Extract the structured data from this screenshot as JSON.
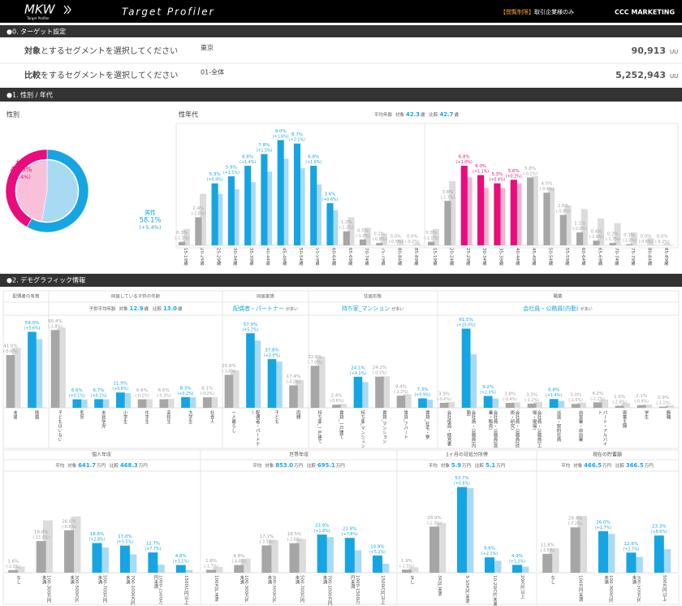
{
  "header": {
    "logo": "MKW",
    "logo_sub": "Target Profiler",
    "app_title": "Target Profiler",
    "restriction_tag": "【閲覧制限】",
    "restriction_text": "取引企業様のみ",
    "brand": "CCC MARKETING"
  },
  "sections": [
    "●0. ターゲット設定",
    "●1. 性別 / 年代",
    "●2. デモグラフィック情報"
  ],
  "target_setting": {
    "rows": [
      {
        "label_key": "対象",
        "label_text": "とするセグメントを選択してください",
        "segment": "東京",
        "count": "90,913",
        "unit": "UU"
      },
      {
        "label_key": "比較",
        "label_text": "をするセグメントを選択してください",
        "segment": "01-全体",
        "count": "5,252,943",
        "unit": "UU"
      }
    ]
  },
  "colors": {
    "accent": "#16a5e3",
    "female_label": "#ea0b7c",
    "male_label": "#16a5e3"
  },
  "chart_data": [
    {
      "type": "pie",
      "title": "性別",
      "categories": [
        "女性",
        "男性"
      ],
      "series": [
        {
          "colors": [
            "#ea0b7c",
            "#16a5e3"
          ],
          "values": [
            41.9,
            58.1
          ],
          "value_labels": [
            "41.9%",
            "58.1%"
          ],
          "diff_labels": [
            "(-5.4%)",
            "(+5.4%)"
          ]
        },
        {
          "colors": [
            "#f9c0da",
            "#a9daf3"
          ],
          "values": [
            47.3,
            52.7
          ]
        }
      ]
    },
    {
      "type": "bar",
      "title": "性年代",
      "stats": {
        "label": "平均年齢",
        "target_label": "対象",
        "target_value": 42.3,
        "compare_label": "比較",
        "compare_value": 42.7,
        "unit": "歳"
      },
      "categories": [
        "15-19歳",
        "20-24歳",
        "25-29歳",
        "30-34歳",
        "35-39歳",
        "40-44歳",
        "45-49歳",
        "50-54歳",
        "55-59歳",
        "60-64歳",
        "65-69歳",
        "70-74歳",
        "75-79歳",
        "80-84歳",
        "85-89歳"
      ],
      "ylim": [
        0,
        10
      ],
      "series": [
        {
          "color": "#16a5e3",
          "muted_color": "#a6a6a6",
          "values": [
            0.3,
            2.4,
            5.3,
            5.9,
            6.8,
            7.8,
            9.0,
            8.7,
            6.8,
            3.6,
            1.2,
            0.5,
            0.2,
            0.0,
            0.0
          ],
          "value_labels": [
            "0.3%",
            "2.4%",
            "5.3%",
            "5.9%",
            "6.8%",
            "7.8%",
            "9.0%",
            "8.7%",
            "6.8%",
            "3.6%",
            "1.2%",
            "0.5%",
            "0.2%",
            "0.0%",
            "0.0%"
          ],
          "diff_labels": [
            "(-1.1%)",
            "(-2.0%)",
            "(+0.9%)",
            "(+1.1%)",
            "(+1.4%)",
            "(+1.5%)",
            "(+1.6%)",
            "(+2.1%)",
            "(+1.6%)",
            "(+0.6%)",
            "(-1.2%)",
            "(-1.0%)",
            "(-0.8%)",
            "(-0.5%)",
            "(-0.2%)"
          ]
        },
        {
          "color": "#a9daf3",
          "muted_color": "#dcdcdc",
          "values": [
            1.4,
            4.4,
            4.4,
            4.8,
            5.4,
            6.3,
            7.4,
            6.6,
            5.2,
            3.0,
            2.4,
            1.5,
            1.0,
            0.5,
            0.2
          ]
        }
      ]
    },
    {
      "type": "bar",
      "categories": [
        "15-19歳",
        "20-24歳",
        "25-29歳",
        "30-34歳",
        "35-39歳",
        "40-44歳",
        "45-49歳",
        "50-54歳",
        "55-59歳",
        "60-64歳",
        "65-69歳",
        "70-74歳",
        "75-79歳",
        "80-84歳",
        "85-89歳"
      ],
      "ylim": [
        0,
        10
      ],
      "series": [
        {
          "color": "#ea0b7c",
          "muted_color": "#a6a6a6",
          "values": [
            0.3,
            3.8,
            6.8,
            6.0,
            5.3,
            5.6,
            5.8,
            4.5,
            2.6,
            1.1,
            0.4,
            0.2,
            0.1,
            0.0,
            0.0
          ],
          "value_labels": [
            "0.3%",
            "3.8%",
            "6.8%",
            "6.0%",
            "5.3%",
            "5.6%",
            "5.8%",
            "4.5%",
            "2.6%",
            "1.1%",
            "0.4%",
            "0.2%",
            "0.1%",
            "0.0%",
            "0.0%"
          ],
          "diff_labels": [
            "(-1.1%)",
            "(-1.7%)",
            "(+1.0%)",
            "(+1.1%)",
            "(+0.4%)",
            "(+0.3%)",
            "(-0.1%)",
            "(-0.4%)",
            "(-0.8%)",
            "(-2.0%)",
            "(-1.9%)",
            "(-1.7%)",
            "(-1.0%)",
            "(-0.6%)",
            "(-0.2%)"
          ]
        },
        {
          "color": "#f6b1d0",
          "muted_color": "#dcdcdc",
          "values": [
            1.4,
            5.5,
            5.8,
            4.9,
            4.9,
            5.3,
            5.9,
            4.9,
            3.4,
            3.1,
            2.3,
            1.9,
            1.1,
            0.6,
            0.2
          ]
        }
      ]
    },
    {
      "type": "bar",
      "title": "配偶者の有無",
      "categories": [
        "未婚",
        "既婚"
      ],
      "ylim": [
        0,
        65
      ],
      "series": [
        {
          "color": "#16a5e3",
          "muted_color": "#a6a6a6",
          "values": [
            41.0,
            59.0
          ],
          "value_labels": [
            "41.0%",
            "59.0%"
          ],
          "diff_labels": [
            "(-5.6%)",
            "(+5.6%)"
          ]
        },
        {
          "color": "#a9daf3",
          "muted_color": "#dcdcdc",
          "values": [
            46.6,
            53.4
          ]
        }
      ]
    },
    {
      "type": "bar",
      "title": "同居している子供の年齢",
      "stats": {
        "label": "子供平均年齢",
        "target_label": "対象",
        "target_value": 12.9,
        "compare_label": "比較",
        "compare_value": {
          "value": 13,
          "label": "13.0"
        },
        "unit": "歳"
      },
      "categories": [
        "子どもはいない",
        "乳児",
        "未就学児",
        "小学生",
        "中学生",
        "高校生",
        "大学生",
        "社会人"
      ],
      "ylim": [
        0,
        65
      ],
      "series": [
        {
          "color": "#16a5e3",
          "muted_color": "#a6a6a6",
          "values": [
            60.4,
            6.6,
            6.7,
            11.9,
            6.6,
            6.6,
            8.3,
            8.1
          ],
          "value_labels": [
            "60.4%",
            "6.6%",
            "6.7%",
            "11.9%",
            "6.6%",
            "6.6%",
            "8.3%",
            "8.1%"
          ],
          "diff_labels": [
            "(-1.8%)",
            "(+0.1%)",
            "(+0.1%)",
            "(+0.6%)",
            "(-0.1%)",
            "(-0.3%)",
            "(+0.2%)",
            "(-0.2%)"
          ]
        },
        {
          "color": "#a9daf3",
          "muted_color": "#dcdcdc",
          "values": [
            62.2,
            6.5,
            6.6,
            11.3,
            6.7,
            6.9,
            8.1,
            8.3
          ]
        }
      ]
    },
    {
      "type": "bar",
      "title": "同居家族",
      "highlight": {
        "text": "配偶者・パートナー",
        "suffix": "が多い"
      },
      "categories": [
        "一人暮らし",
        "配偶者・パートナー",
        "子ども",
        "両親"
      ],
      "ylim": [
        0,
        65
      ],
      "series": [
        {
          "color": "#16a5e3",
          "muted_color": "#a6a6a6",
          "values": [
            25.6,
            57.9,
            37.8,
            17.4
          ],
          "value_labels": [
            "25.6%",
            "57.9%",
            "37.8%",
            "17.4%"
          ],
          "diff_labels": [
            "(-3.6%)",
            "(+5.7%)",
            "(+2.0%)",
            "(-4.2%)"
          ]
        },
        {
          "color": "#a9daf3",
          "muted_color": "#dcdcdc",
          "values": [
            29.2,
            52.2,
            35.8,
            21.6
          ]
        }
      ]
    },
    {
      "type": "bar",
      "title": "住居形態",
      "highlight": {
        "text": "持ち家_マンション",
        "suffix": "が多い"
      },
      "categories": [
        "持ち家_一戸建て",
        "賃貸_一戸建て",
        "持ち家_マンション",
        "賃貸_マンション",
        "賃貸_アパート",
        "賃貸_社宅・寮"
      ],
      "ylim": [
        0,
        65
      ],
      "series": [
        {
          "color": "#16a5e3",
          "muted_color": "#a6a6a6",
          "values": [
            32.6,
            2.4,
            24.1,
            24.2,
            9.4,
            7.3
          ],
          "value_labels": [
            "32.6%",
            "2.4%",
            "24.1%",
            "24.2%",
            "9.4%",
            "7.3%"
          ],
          "diff_labels": [
            "(-7.0%)",
            "(-0.6%)",
            "(+4.1%)",
            "(-0.2%)",
            "(-1.2%)",
            "(+0.9%)"
          ]
        },
        {
          "color": "#a9daf3",
          "muted_color": "#dcdcdc",
          "values": [
            39.6,
            3.0,
            20.0,
            24.4,
            10.6,
            6.4
          ]
        }
      ]
    },
    {
      "type": "bar",
      "title": "職業",
      "highlight": {
        "text": "会社員・公務員(内勤)",
        "suffix": "が多い"
      },
      "categories": [
        "会社役員・経営者",
        "会社員・公務員(内勤)",
        "会社員・公務員(営業・販売)",
        "会社員・公務員(技術・研究)",
        "会社員・公務員(工場・現場)",
        "派遣・契約社員",
        "自営業・自由業",
        "パート・アルバイト",
        "専業主婦",
        "学生",
        "無職"
      ],
      "ylim": [
        0,
        65
      ],
      "series": [
        {
          "color": "#16a5e3",
          "muted_color": "#a6a6a6",
          "values": [
            3.9,
            61.5,
            9.2,
            3.8,
            3.3,
            6.8,
            3.0,
            4.2,
            1.6,
            2.1,
            0.9
          ],
          "value_labels": [
            "3.9%",
            "61.5%",
            "9.2%",
            "3.8%",
            "3.3%",
            "6.8%",
            "3.0%",
            "4.2%",
            "1.6%",
            "2.1%",
            "0.9%"
          ],
          "diff_labels": [
            "(-0.6%)",
            "(+20.0%)",
            "(+2.0%)",
            "(-0.4%)",
            "(-1.2%)",
            "(+1.4%)",
            "(-1.0%)",
            "(-2.2%)",
            "(-2.0%)",
            "(-0.4%)",
            "(-1.1%)"
          ]
        },
        {
          "color": "#a9daf3",
          "muted_color": "#dcdcdc",
          "values": [
            4.5,
            41.5,
            7.2,
            4.2,
            4.5,
            5.4,
            4.0,
            6.4,
            3.6,
            2.5,
            2.0
          ]
        }
      ]
    },
    {
      "type": "bar",
      "title": "個人年収",
      "stats": {
        "label": "平均",
        "target_label": "対象",
        "target_value": 641.7,
        "compare_label": "比較",
        "compare_value": 468.3,
        "unit": "万円"
      },
      "categories": [
        "なし",
        "100-300万円未満",
        "300-500万円未満",
        "500-700万円未満",
        "700-1000万円未満",
        "1000-1500万円未満",
        "1500万円以上"
      ],
      "ylim": [
        0,
        55
      ],
      "series": [
        {
          "color": "#16a5e3",
          "muted_color": "#a6a6a6",
          "values": [
            1.6,
            19.8,
            26.6,
            18.6,
            17.0,
            12.7,
            4.8
          ],
          "value_labels": [
            "1.6%",
            "19.8%",
            "26.6%",
            "18.6%",
            "17.0%",
            "12.7%",
            "4.8%"
          ],
          "diff_labels": [
            "(-2.3%)",
            "(-13.0%)",
            "(-8.6%)",
            "(+2.8%)",
            "(+5.5%)",
            "(+7.7%)",
            "(+3.1%)"
          ]
        },
        {
          "color": "#a9daf3",
          "muted_color": "#dcdcdc",
          "values": [
            3.9,
            32.8,
            35.2,
            15.8,
            11.5,
            5.0,
            1.7
          ]
        }
      ]
    },
    {
      "type": "bar",
      "title": "世帯年収",
      "stats": {
        "label": "平均",
        "target_label": "対象",
        "target_value": {
          "value": 853,
          "label": "853.0"
        },
        "compare_label": "比較",
        "compare_value": 695.1,
        "unit": "万円"
      },
      "categories": [
        "100万円未満",
        "100-300万円未満",
        "300-500万円未満",
        "500-700万円未満",
        "700-1000万円未満",
        "1000-1500万円未満",
        "1500万円以上"
      ],
      "ylim": [
        0,
        55
      ],
      "series": [
        {
          "color": "#16a5e3",
          "muted_color": "#a6a6a6",
          "values": [
            1.8,
            4.8,
            17.1,
            18.5,
            23.9,
            21.8,
            10.8
          ],
          "value_labels": [
            "1.8%",
            "4.8%",
            "17.1%",
            "18.5%",
            "23.9%",
            "21.8%",
            "10.8%"
          ],
          "diff_labels": [
            "(-1.7%)",
            "(-4.0%)",
            "(-3.5%)",
            "(-2.6%)",
            "(+1.6%)",
            "(+7.8%)",
            "(+5.2%)"
          ]
        },
        {
          "color": "#a9daf3",
          "muted_color": "#dcdcdc",
          "values": [
            3.5,
            8.8,
            20.6,
            21.1,
            22.3,
            14.0,
            5.6
          ]
        }
      ]
    },
    {
      "type": "bar",
      "title": "1ヶ月の可処分所得",
      "stats": {
        "label": "平均",
        "target_label": "対象",
        "target_value": 5.9,
        "compare_label": "比較",
        "compare_value": 5.1,
        "unit": "万円"
      },
      "categories": [
        "なし",
        "3万円未満",
        "3-10万円未満",
        "10-20万円未満",
        "20万円以上"
      ],
      "ylim": [
        0,
        55
      ],
      "series": [
        {
          "color": "#16a5e3",
          "muted_color": "#a6a6a6",
          "values": [
            1.9,
            28.9,
            53.7,
            9.6,
            4.9
          ],
          "value_labels": [
            "1.9%",
            "28.9%",
            "53.7%",
            "9.6%",
            "4.9%"
          ],
          "diff_labels": [
            "(-1.5%)",
            "(-2.3%)",
            "(+0.6%)",
            "(+2.1%)",
            "(+1.1%)"
          ]
        },
        {
          "color": "#a9daf3",
          "muted_color": "#dcdcdc",
          "values": [
            3.4,
            31.2,
            53.1,
            7.5,
            3.8
          ]
        }
      ]
    },
    {
      "type": "bar",
      "title": "現在の貯蓄額",
      "stats": {
        "label": "平均",
        "target_label": "対象",
        "target_value": 466.5,
        "compare_label": "比較",
        "compare_value": 366.5,
        "unit": "万円"
      },
      "categories": [
        "なし",
        "100万円未満",
        "100-300万円未満",
        "300-500万円未満",
        "500万円以上"
      ],
      "ylim": [
        0,
        55
      ],
      "series": [
        {
          "color": "#16a5e3",
          "muted_color": "#a6a6a6",
          "values": [
            11.8,
            28.4,
            26.0,
            12.6,
            23.3
          ],
          "value_labels": [
            "11.8%",
            "28.4%",
            "26.0%",
            "12.6%",
            "23.3%"
          ],
          "diff_labels": [
            "(-3.5%)",
            "(-7.2%)",
            "(+1.7%)",
            "(+2.7%)",
            "(+8.6%)"
          ]
        },
        {
          "color": "#a9daf3",
          "muted_color": "#dcdcdc",
          "values": [
            15.3,
            35.6,
            24.3,
            9.9,
            14.7
          ]
        }
      ]
    }
  ]
}
